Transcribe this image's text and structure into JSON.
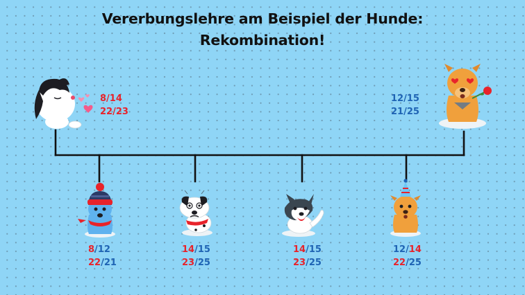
{
  "title": {
    "line1": "Vererbungslehre am Beispiel der Hunde:",
    "line2": "Rekombination!"
  },
  "colors": {
    "background": "#8fd5f6",
    "red_allele": "#e8232b",
    "blue_allele": "#1f64b4",
    "line": "#111111"
  },
  "parents": {
    "mother": {
      "icon": "black-white-dog-kissing-icon",
      "row1": {
        "a": "8",
        "sep": "/",
        "b": "14"
      },
      "row2": {
        "a": "22",
        "sep": "/",
        "b": "23"
      }
    },
    "father": {
      "icon": "orange-dog-with-rose-icon",
      "row1": {
        "a": "12",
        "sep": "/",
        "b": "15"
      },
      "row2": {
        "a": "21",
        "sep": "/",
        "b": "25"
      }
    }
  },
  "children": [
    {
      "icon": "blue-dog-with-beanie-icon",
      "row1": {
        "a": "8",
        "sep": "/",
        "b": "12"
      },
      "row2": {
        "a": "22",
        "sep": "/",
        "b": "21"
      }
    },
    {
      "icon": "dalmatian-dog-grumpy-icon",
      "row1": {
        "a": "14",
        "sep": "/",
        "b": "15"
      },
      "row2": {
        "a": "23",
        "sep": "/",
        "b": "25"
      }
    },
    {
      "icon": "husky-dog-waving-icon",
      "row1": {
        "a": "14",
        "sep": "/",
        "b": "15"
      },
      "row2": {
        "a": "23",
        "sep": "/",
        "b": "25"
      }
    },
    {
      "icon": "orange-dog-with-party-hat-icon",
      "row1": {
        "a": "12",
        "sep": "/",
        "b": "14"
      },
      "row2": {
        "a": "22",
        "sep": "/",
        "b": "25"
      }
    }
  ]
}
